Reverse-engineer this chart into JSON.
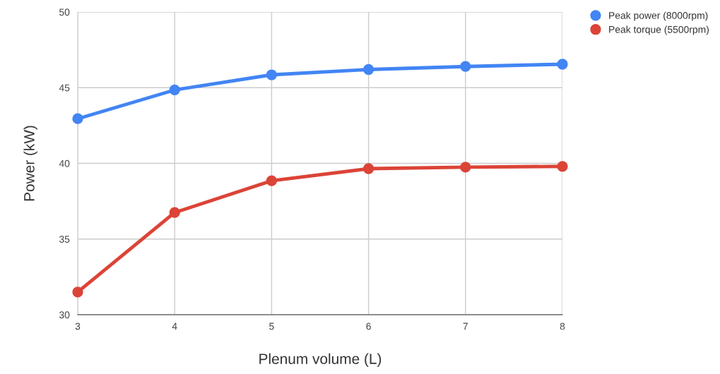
{
  "chart_data": {
    "type": "line",
    "xlabel": "Plenum volume (L)",
    "ylabel": "Power (kW)",
    "x": [
      3,
      4,
      5,
      6,
      7,
      8
    ],
    "series": [
      {
        "name": "Peak power (8000rpm)",
        "color": "#4285f4",
        "values": [
          42.95,
          44.85,
          45.85,
          46.2,
          46.4,
          46.55
        ]
      },
      {
        "name": "Peak torque (5500rpm)",
        "color": "#db4437",
        "values": [
          31.5,
          36.75,
          38.85,
          39.65,
          39.75,
          39.8
        ]
      }
    ],
    "xlim": [
      3,
      8
    ],
    "xticks": [
      3,
      4,
      5,
      6,
      7,
      8
    ],
    "ylim": [
      30,
      50
    ],
    "yticks": [
      30,
      35,
      40,
      45,
      50
    ],
    "grid": true,
    "legend": "top right",
    "marker": "circle",
    "line_style": "solid"
  }
}
